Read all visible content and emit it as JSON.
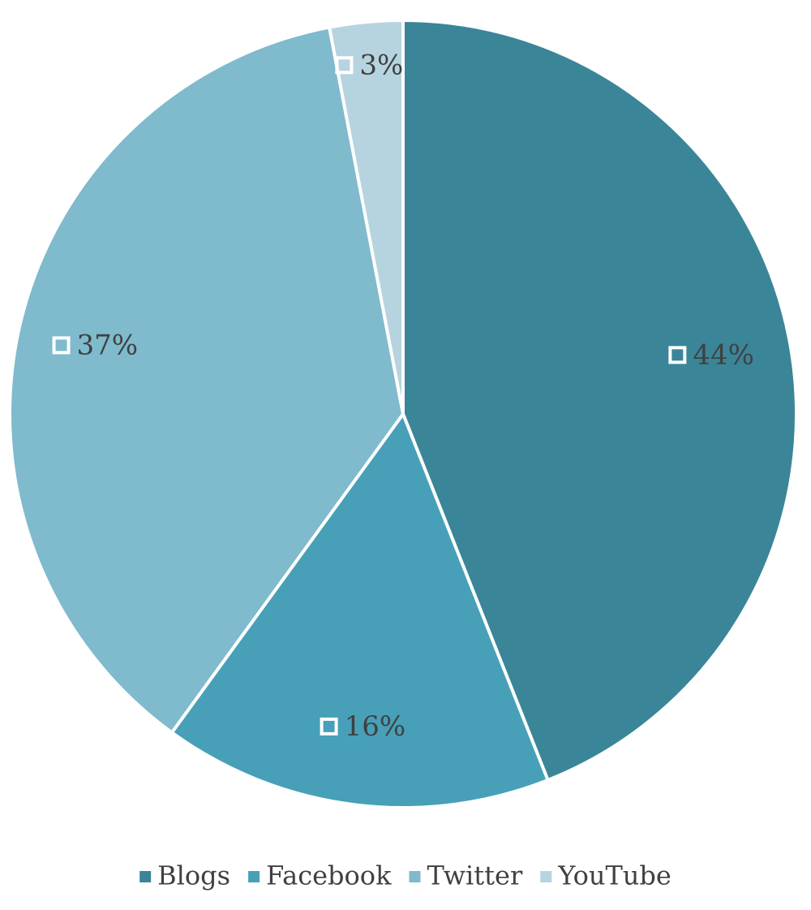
{
  "chart_data": {
    "type": "pie",
    "categories": [
      "Blogs",
      "Facebook",
      "Twitter",
      "YouTube"
    ],
    "values": [
      44,
      16,
      37,
      3
    ],
    "value_labels": [
      "44%",
      "16%",
      "37%",
      "3%"
    ],
    "colors": [
      "#3b8599",
      "#47a0b8",
      "#7fbacd",
      "#b6d4df"
    ],
    "legend": "bottom"
  }
}
